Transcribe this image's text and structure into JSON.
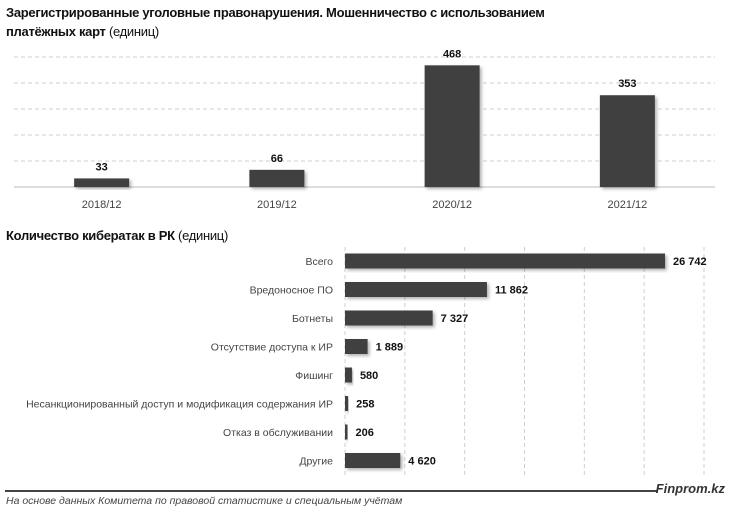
{
  "chart_data": [
    {
      "type": "bar",
      "title": "Зарегистрированные уголовные правонарушения. Мошенничество с использованием платёжных карт",
      "title_line1": "Зарегистрированные уголовные правонарушения. Мошенничество с использованием",
      "title_line2": "платёжных карт",
      "unit": "(единиц)",
      "categories": [
        "2018/12",
        "2019/12",
        "2020/12",
        "2021/12"
      ],
      "values": [
        33,
        66,
        468,
        353
      ],
      "labels": [
        "33",
        "66",
        "468",
        "353"
      ],
      "ylim": [
        0,
        500
      ],
      "grid_step": 100,
      "grid": true,
      "bar_color": "#404040"
    },
    {
      "type": "bar",
      "orientation": "horizontal",
      "title": "Количество кибератак в РК",
      "unit": "(единиц)",
      "categories": [
        "Всего",
        "Вредоносное ПО",
        "Ботнеты",
        "Отсутствие доступа к ИР",
        "Фишинг",
        "Несанкционированный доступ и модификация содержания ИР",
        "Отказ в обслуживании",
        "Другие"
      ],
      "values": [
        26742,
        11862,
        7327,
        1889,
        580,
        258,
        206,
        4620
      ],
      "labels": [
        "26 742",
        "11 862",
        "7 327",
        "1 889",
        "580",
        "258",
        "206",
        "4 620"
      ],
      "xlim": [
        0,
        30000
      ],
      "grid_step": 5000,
      "grid": true,
      "bar_color": "#404040"
    }
  ],
  "footer": {
    "source": "На основе данных Комитета по правовой статистике и специальным учётам",
    "brand": "Finprom.kz"
  }
}
